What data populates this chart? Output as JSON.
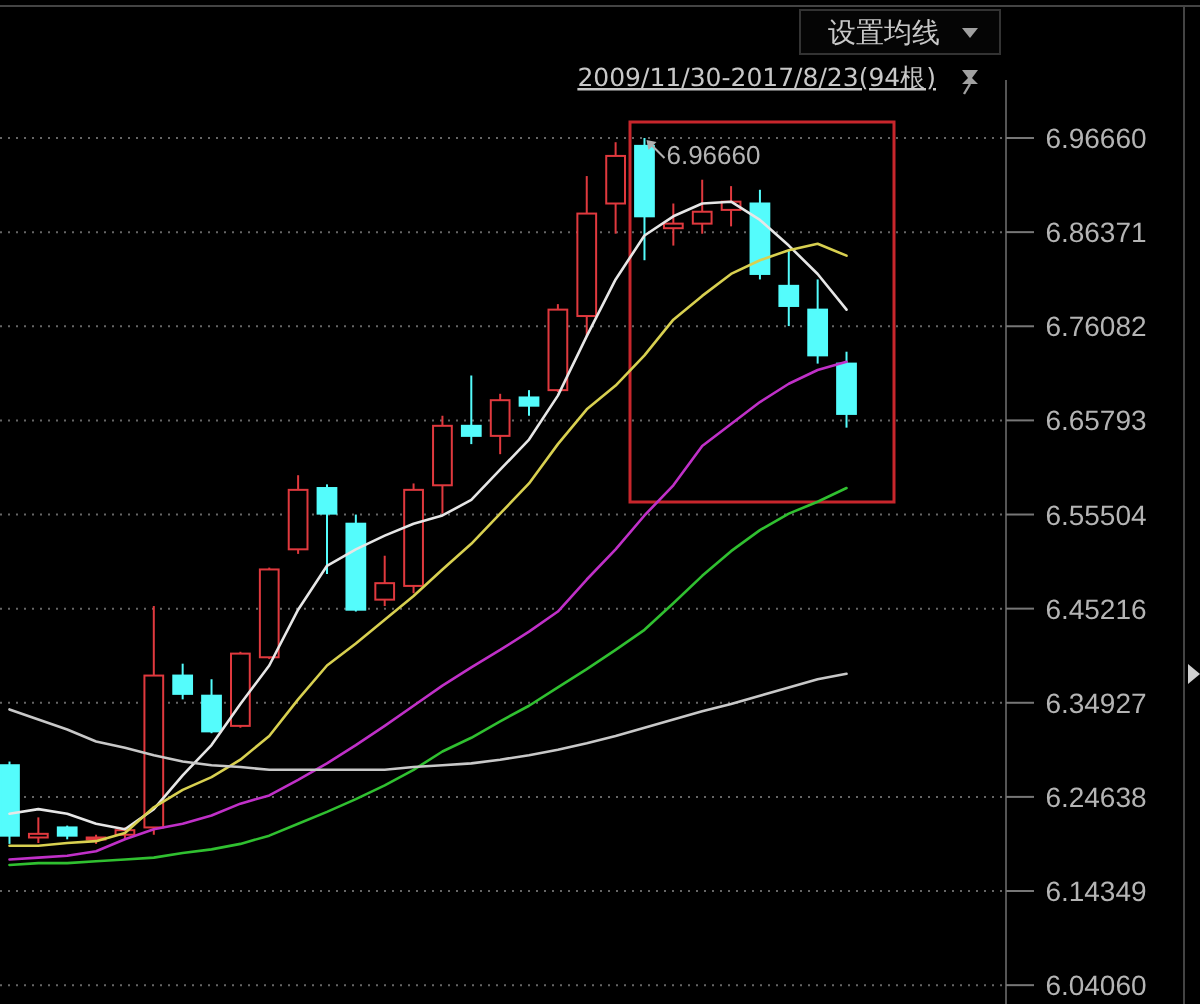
{
  "chart_data": {
    "type": "candlestick",
    "categories": [
      null,
      null,
      null,
      null,
      null,
      null,
      null,
      null,
      null,
      null,
      null,
      null,
      null,
      null,
      null,
      null,
      null,
      null,
      null,
      null,
      null,
      null,
      null,
      null,
      null,
      null,
      null,
      null,
      null,
      null
    ],
    "ohlc": [
      [
        6.281,
        6.285,
        6.195,
        6.204
      ],
      [
        6.202,
        6.224,
        6.196,
        6.206
      ],
      [
        6.213,
        6.215,
        6.2,
        6.204
      ],
      [
        6.2,
        6.205,
        6.195,
        6.202
      ],
      [
        6.205,
        6.213,
        6.2,
        6.21
      ],
      [
        6.213,
        6.455,
        6.205,
        6.379
      ],
      [
        6.379,
        6.392,
        6.353,
        6.359
      ],
      [
        6.357,
        6.375,
        6.316,
        6.318
      ],
      [
        6.324,
        6.405,
        6.322,
        6.403
      ],
      [
        6.399,
        6.497,
        6.397,
        6.495
      ],
      [
        6.517,
        6.598,
        6.512,
        6.582
      ],
      [
        6.584,
        6.588,
        6.49,
        6.556
      ],
      [
        6.545,
        6.555,
        6.449,
        6.451
      ],
      [
        6.462,
        6.51,
        6.455,
        6.48
      ],
      [
        6.477,
        6.589,
        6.469,
        6.582
      ],
      [
        6.587,
        6.663,
        6.556,
        6.652
      ],
      [
        6.652,
        6.707,
        6.632,
        6.641
      ],
      [
        6.641,
        6.687,
        6.621,
        6.68
      ],
      [
        6.683,
        6.691,
        6.663,
        6.674
      ],
      [
        6.691,
        6.785,
        6.689,
        6.779
      ],
      [
        6.772,
        6.925,
        6.75,
        6.884
      ],
      [
        6.895,
        6.962,
        6.862,
        6.947
      ],
      [
        6.958,
        6.9666,
        6.833,
        6.881
      ],
      [
        6.868,
        6.895,
        6.849,
        6.873
      ],
      [
        6.873,
        6.921,
        6.862,
        6.886
      ],
      [
        6.888,
        6.914,
        6.87,
        6.897
      ],
      [
        6.895,
        6.91,
        6.812,
        6.818
      ],
      [
        6.805,
        6.844,
        6.761,
        6.783
      ],
      [
        6.779,
        6.812,
        6.72,
        6.729
      ],
      [
        6.72,
        6.733,
        6.65,
        6.665
      ]
    ],
    "series": [
      {
        "type": "line",
        "color": "#e6e6e6",
        "values": [
          6.228,
          6.233,
          6.228,
          6.217,
          6.211,
          6.233,
          6.27,
          6.303,
          6.348,
          6.39,
          6.451,
          6.499,
          6.517,
          6.532,
          6.545,
          6.554,
          6.571,
          6.604,
          6.637,
          6.685,
          6.75,
          6.812,
          6.86,
          6.881,
          6.895,
          6.897,
          6.877,
          6.849,
          6.818,
          6.779
        ]
      },
      {
        "type": "line",
        "color": "#d8d050",
        "values": [
          6.193,
          6.193,
          6.196,
          6.198,
          6.207,
          6.235,
          6.254,
          6.268,
          6.287,
          6.313,
          6.353,
          6.39,
          6.414,
          6.44,
          6.466,
          6.495,
          6.523,
          6.556,
          6.589,
          6.632,
          6.67,
          6.696,
          6.729,
          6.768,
          6.794,
          6.818,
          6.833,
          6.844,
          6.851,
          6.838
        ]
      },
      {
        "type": "line",
        "color": "#c030c8",
        "values": [
          6.178,
          6.18,
          6.182,
          6.187,
          6.2,
          6.211,
          6.217,
          6.226,
          6.239,
          6.248,
          6.265,
          6.283,
          6.303,
          6.324,
          6.346,
          6.368,
          6.388,
          6.407,
          6.427,
          6.449,
          6.484,
          6.517,
          6.554,
          6.587,
          6.63,
          6.654,
          6.678,
          6.698,
          6.713,
          6.722
        ]
      },
      {
        "type": "line",
        "color": "#30c030",
        "values": [
          6.172,
          6.174,
          6.174,
          6.176,
          6.178,
          6.18,
          6.185,
          6.189,
          6.195,
          6.204,
          6.217,
          6.23,
          6.244,
          6.259,
          6.276,
          6.296,
          6.311,
          6.329,
          6.346,
          6.366,
          6.386,
          6.407,
          6.429,
          6.458,
          6.488,
          6.515,
          6.538,
          6.556,
          6.569,
          6.584
        ]
      },
      {
        "type": "line",
        "color": "#c8c8c8",
        "values": [
          6.342,
          6.331,
          6.32,
          6.307,
          6.3,
          6.292,
          6.285,
          6.281,
          6.279,
          6.276,
          6.276,
          6.276,
          6.276,
          6.276,
          6.279,
          6.281,
          6.283,
          6.287,
          6.292,
          6.298,
          6.305,
          6.313,
          6.322,
          6.331,
          6.34,
          6.348,
          6.357,
          6.366,
          6.375,
          6.381
        ]
      }
    ],
    "ylim": [
      6.02,
      7.03
    ],
    "yticks": [
      {
        "value": 6.9666,
        "label": "6.96660"
      },
      6.86371,
      6.76082,
      6.65793,
      6.55504,
      6.45216,
      6.34927,
      6.24638,
      6.14349,
      {
        "value": 6.0406,
        "label": "6.04060"
      }
    ],
    "grid": "y",
    "annotations": [
      "设置均线",
      "2009/11/30-2017/8/23(94根)",
      "6.96660"
    ]
  }
}
